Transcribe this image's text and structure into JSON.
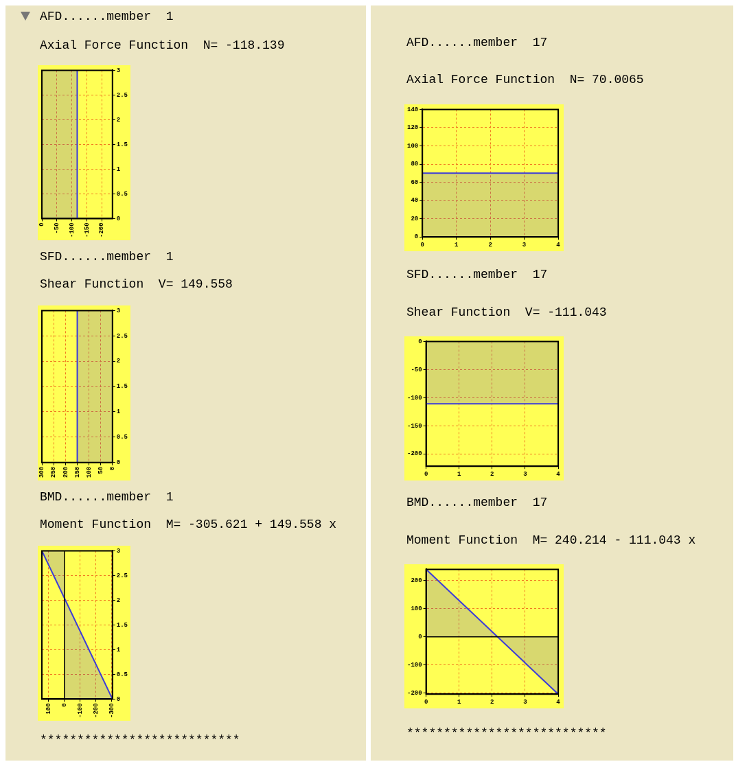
{
  "chart_data": [
    {
      "type": "area",
      "title": "AFD......member  1",
      "subtitle": "Axial Force Function  N= -118.139",
      "orientation": "horizontal",
      "xlim": [
        0,
        -236
      ],
      "xticks": [
        0,
        -50,
        -100,
        -150,
        -200
      ],
      "ylim": [
        0,
        3
      ],
      "yticks": [
        0,
        0.5,
        1,
        1.5,
        2,
        2.5,
        3
      ],
      "grid": true,
      "series": [
        {
          "color": "#3c3cd8",
          "x": [
            0,
            3
          ],
          "values": [
            -118.139,
            -118.139
          ]
        }
      ]
    },
    {
      "type": "area",
      "title": "SFD......member  1",
      "subtitle": "Shear Function  V= 149.558",
      "orientation": "horizontal",
      "xlim": [
        300,
        0
      ],
      "xticks": [
        300,
        250,
        200,
        150,
        100,
        50,
        0
      ],
      "ylim": [
        0,
        3
      ],
      "yticks": [
        0,
        0.5,
        1,
        1.5,
        2,
        2.5,
        3
      ],
      "grid": true,
      "series": [
        {
          "color": "#3c3cd8",
          "x": [
            0,
            3
          ],
          "values": [
            149.558,
            149.558
          ]
        }
      ]
    },
    {
      "type": "area",
      "title": "BMD......member  1",
      "subtitle": "Moment Function  M= -305.621 + 149.558 x",
      "orientation": "horizontal",
      "xlim": [
        143.053,
        -305.621
      ],
      "xticks": [
        100,
        0,
        -100,
        -200,
        -300
      ],
      "ylim": [
        0,
        3
      ],
      "yticks": [
        0,
        0.5,
        1,
        1.5,
        2,
        2.5,
        3
      ],
      "grid": true,
      "ref_lines": [
        {
          "axis": "x",
          "value": 0,
          "color": "#000000"
        }
      ],
      "series": [
        {
          "color": "#3c3cd8",
          "x": [
            0,
            3
          ],
          "values": [
            -305.621,
            143.053
          ]
        }
      ],
      "annotations": [
        "***************************"
      ]
    },
    {
      "type": "area",
      "title": "AFD......member  17",
      "subtitle": "Axial Force Function  N= 70.0065",
      "xlim": [
        0,
        4
      ],
      "xticks": [
        0,
        1,
        2,
        3,
        4
      ],
      "ylim": [
        0,
        140
      ],
      "yticks": [
        0,
        20,
        40,
        60,
        80,
        100,
        120,
        140
      ],
      "grid": true,
      "series": [
        {
          "color": "#3c3cd8",
          "x": [
            0,
            4
          ],
          "values": [
            70.0065,
            70.0065
          ]
        }
      ]
    },
    {
      "type": "area",
      "title": "SFD......member  17",
      "subtitle": "Shear Function  V= -111.043",
      "xlim": [
        0,
        4
      ],
      "xticks": [
        0,
        1,
        2,
        3,
        4
      ],
      "ylim": [
        -222,
        0
      ],
      "yticks": [
        0,
        -50,
        -100,
        -150,
        -200
      ],
      "grid": true,
      "series": [
        {
          "color": "#3c3cd8",
          "x": [
            0,
            4
          ],
          "values": [
            -111.043,
            -111.043
          ]
        }
      ]
    },
    {
      "type": "area",
      "title": "BMD......member  17",
      "subtitle": "Moment Function  M= 240.214 - 111.043 x",
      "xlim": [
        0,
        4
      ],
      "xticks": [
        0,
        1,
        2,
        3,
        4
      ],
      "ylim": [
        -203.958,
        240.214
      ],
      "yticks": [
        200,
        100,
        0,
        -100,
        -200
      ],
      "grid": true,
      "ref_lines": [
        {
          "axis": "y",
          "value": 0,
          "color": "#000000"
        }
      ],
      "series": [
        {
          "color": "#3c3cd8",
          "x": [
            0,
            4
          ],
          "values": [
            240.214,
            -203.958
          ]
        }
      ],
      "annotations": [
        "***************************"
      ]
    }
  ]
}
